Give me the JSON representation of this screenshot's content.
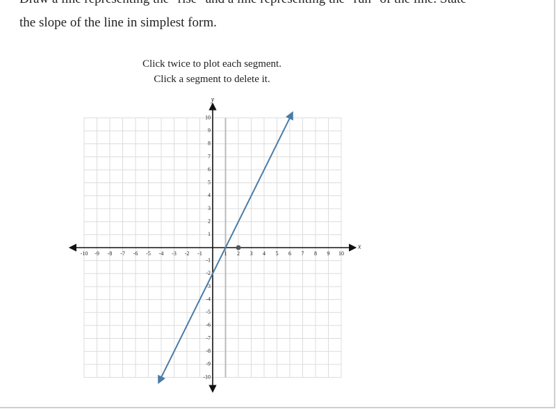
{
  "problem": {
    "line1": "Draw a line representing the \"rise\" and a line representing the \"run\" of the line. State",
    "line2": "the slope of the line in simplest form."
  },
  "instructions": [
    "Click twice to plot each segment.",
    "Click a segment to delete it."
  ],
  "graph": {
    "x_label": "x",
    "y_label": "y",
    "x_ticks": [
      -10,
      -9,
      -8,
      -7,
      -6,
      -5,
      -4,
      -3,
      -2,
      -1,
      1,
      2,
      3,
      4,
      5,
      6,
      7,
      8,
      9,
      10
    ],
    "y_ticks": [
      -10,
      -9,
      -8,
      -7,
      -6,
      -5,
      -4,
      -3,
      -2,
      -1,
      1,
      2,
      3,
      4,
      5,
      6,
      7,
      8,
      9,
      10
    ],
    "xlim": [
      -10,
      10
    ],
    "ylim": [
      -10,
      10
    ],
    "line": {
      "x": [
        -4,
        6
      ],
      "y": [
        -10,
        10
      ],
      "color": "#4a7ba6"
    },
    "segment": {
      "x": [
        1,
        1
      ],
      "y": [
        -10,
        10
      ],
      "color": "#bbbbbb"
    },
    "point": {
      "x": 2,
      "y": 0,
      "color": "#555555"
    }
  }
}
